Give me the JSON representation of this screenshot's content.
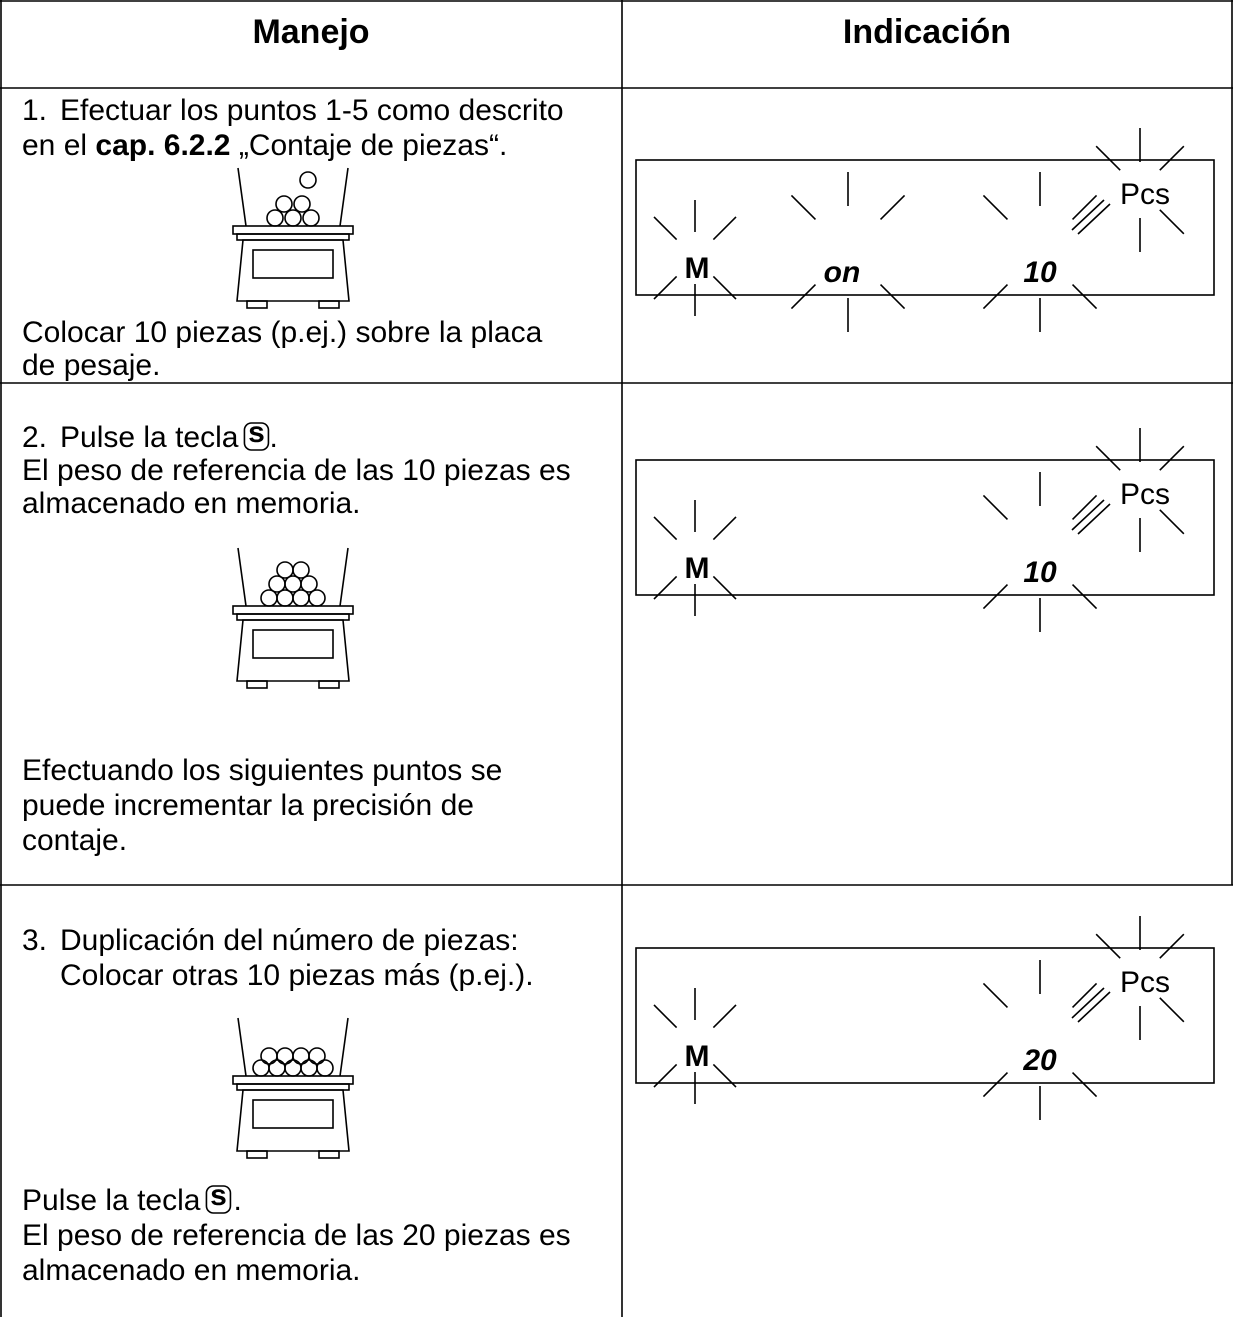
{
  "header": {
    "left": "Manejo",
    "right": "Indicación"
  },
  "rows": [
    {
      "number": "1.",
      "lines": [
        "Efectuar los puntos 1-5 como descrito"
      ],
      "line2_prefix": "en el",
      "ref": "cap. 6.2.2",
      "line2_suffix": "„Contaje de piezas“.",
      "after": [
        "Colocar 10 piezas (p.ej.) sobre la placa",
        "de pesaje."
      ],
      "display": {
        "mode": "M",
        "text": "on",
        "count": "10",
        "unit": "Pcs"
      }
    },
    {
      "number": "2.",
      "before_key": "Pulse la tecla",
      "key": "s",
      "after_key": ".",
      "lines": [
        "El peso de referencia de las 10 piezas es",
        "almacenado en memoria."
      ],
      "after": [
        "Efectuando los siguientes puntos se",
        "puede incrementar la precisión de",
        "contaje."
      ],
      "display": {
        "mode": "M",
        "count": "10",
        "unit": "Pcs"
      }
    },
    {
      "number": "3.",
      "lines": [
        "Duplicación del número de piezas:",
        "Colocar otras 10 piezas más (p.ej.)."
      ],
      "before_key": "Pulse la tecla",
      "key": "s",
      "after_key": ".",
      "after": [
        "El peso de referencia de las 20 piezas es",
        "almacenado en memoria."
      ],
      "display": {
        "mode": "M",
        "count": "20",
        "unit": "Pcs"
      }
    }
  ]
}
